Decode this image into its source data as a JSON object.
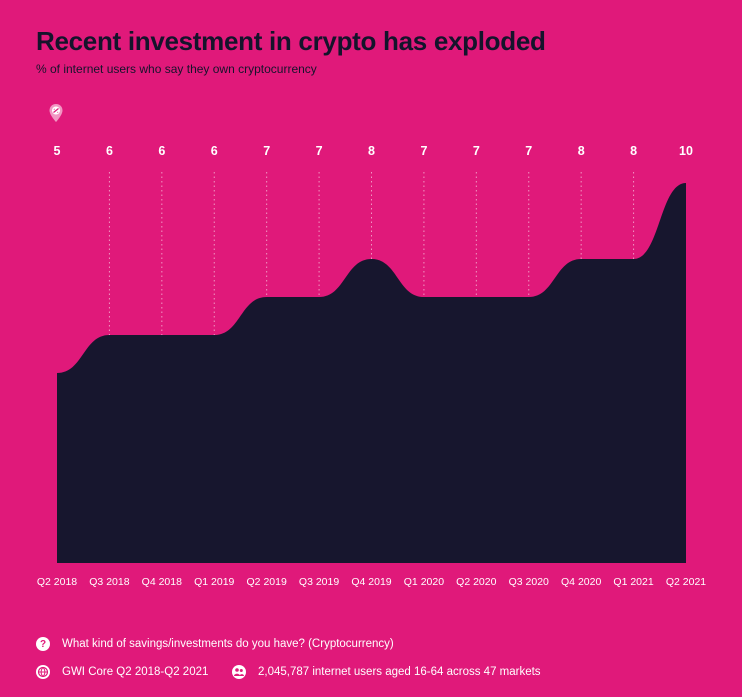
{
  "title": "Recent investment in crypto has exploded",
  "subtitle": "% of internet users who say they own cryptocurrency",
  "colors": {
    "background": "#e0197a",
    "area": "#17162e",
    "text": "#14142b",
    "label": "#ffffff"
  },
  "chart_data": {
    "type": "area",
    "categories": [
      "Q2 2018",
      "Q3 2018",
      "Q4 2018",
      "Q1 2019",
      "Q2 2019",
      "Q3 2019",
      "Q4 2019",
      "Q1 2020",
      "Q2 2020",
      "Q3 2020",
      "Q4 2020",
      "Q1 2021",
      "Q2 2021"
    ],
    "values": [
      5,
      6,
      6,
      6,
      7,
      7,
      8,
      7,
      7,
      7,
      8,
      8,
      10
    ],
    "data_labels": [
      "5",
      "6",
      "6",
      "6",
      "7",
      "7",
      "8",
      "7",
      "7",
      "7",
      "8",
      "8",
      "10"
    ],
    "ylim": [
      0,
      10
    ],
    "grid": "vertical-dotted"
  },
  "footer": {
    "question": "What kind of savings/investments do you have? (Cryptocurrency)",
    "source": "GWI Core Q2 2018-Q2 2021",
    "sample": "2,045,787 internet users aged 16-64 across 47 markets"
  },
  "icons": {
    "pin": "location-pin-icon",
    "question": "question-icon",
    "source": "globe-icon",
    "sample": "people-icon"
  }
}
